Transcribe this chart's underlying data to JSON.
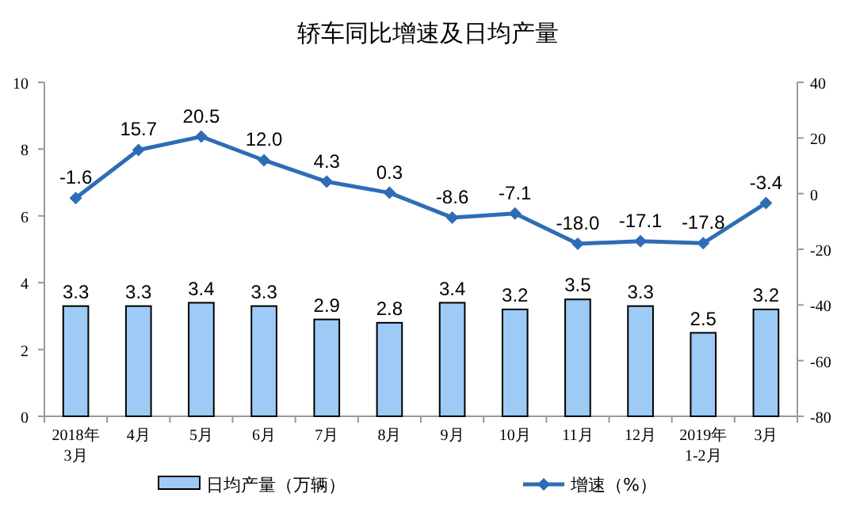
{
  "chart_data": {
    "type": "bar",
    "title": "轿车同比增速及日均产量",
    "categories": [
      "2018年\n3月",
      "4月",
      "5月",
      "6月",
      "7月",
      "8月",
      "9月",
      "10月",
      "11月",
      "12月",
      "2019年\n1-2月",
      "3月"
    ],
    "series": [
      {
        "name": "日均产量（万辆）",
        "color": "#9dcbf5",
        "values": [
          3.3,
          3.3,
          3.4,
          3.3,
          2.9,
          2.8,
          3.4,
          3.2,
          3.5,
          3.3,
          2.5,
          3.2
        ]
      },
      {
        "name": "增速（%）",
        "type": "line",
        "axis": "y2",
        "color": "#2e6db5",
        "values": [
          -1.6,
          15.7,
          20.5,
          12.0,
          4.3,
          0.3,
          -8.6,
          -7.1,
          -18.0,
          -17.1,
          -17.8,
          -3.4
        ],
        "value_labels": [
          "-1.6",
          "15.7",
          "20.5",
          "12.0",
          "4.3",
          "0.3",
          "-8.6",
          "-7.1",
          "-18.0",
          "-17.1",
          "-17.8",
          "-3.4"
        ]
      }
    ],
    "ylim": [
      0,
      10
    ],
    "yticks": [
      0,
      2,
      4,
      6,
      8,
      10
    ],
    "y2lim": [
      -80,
      40
    ],
    "y2ticks": [
      -80,
      -60,
      -40,
      -20,
      0,
      20,
      40
    ],
    "data_labels": true,
    "marker": "diamond",
    "legend": "bottom"
  }
}
